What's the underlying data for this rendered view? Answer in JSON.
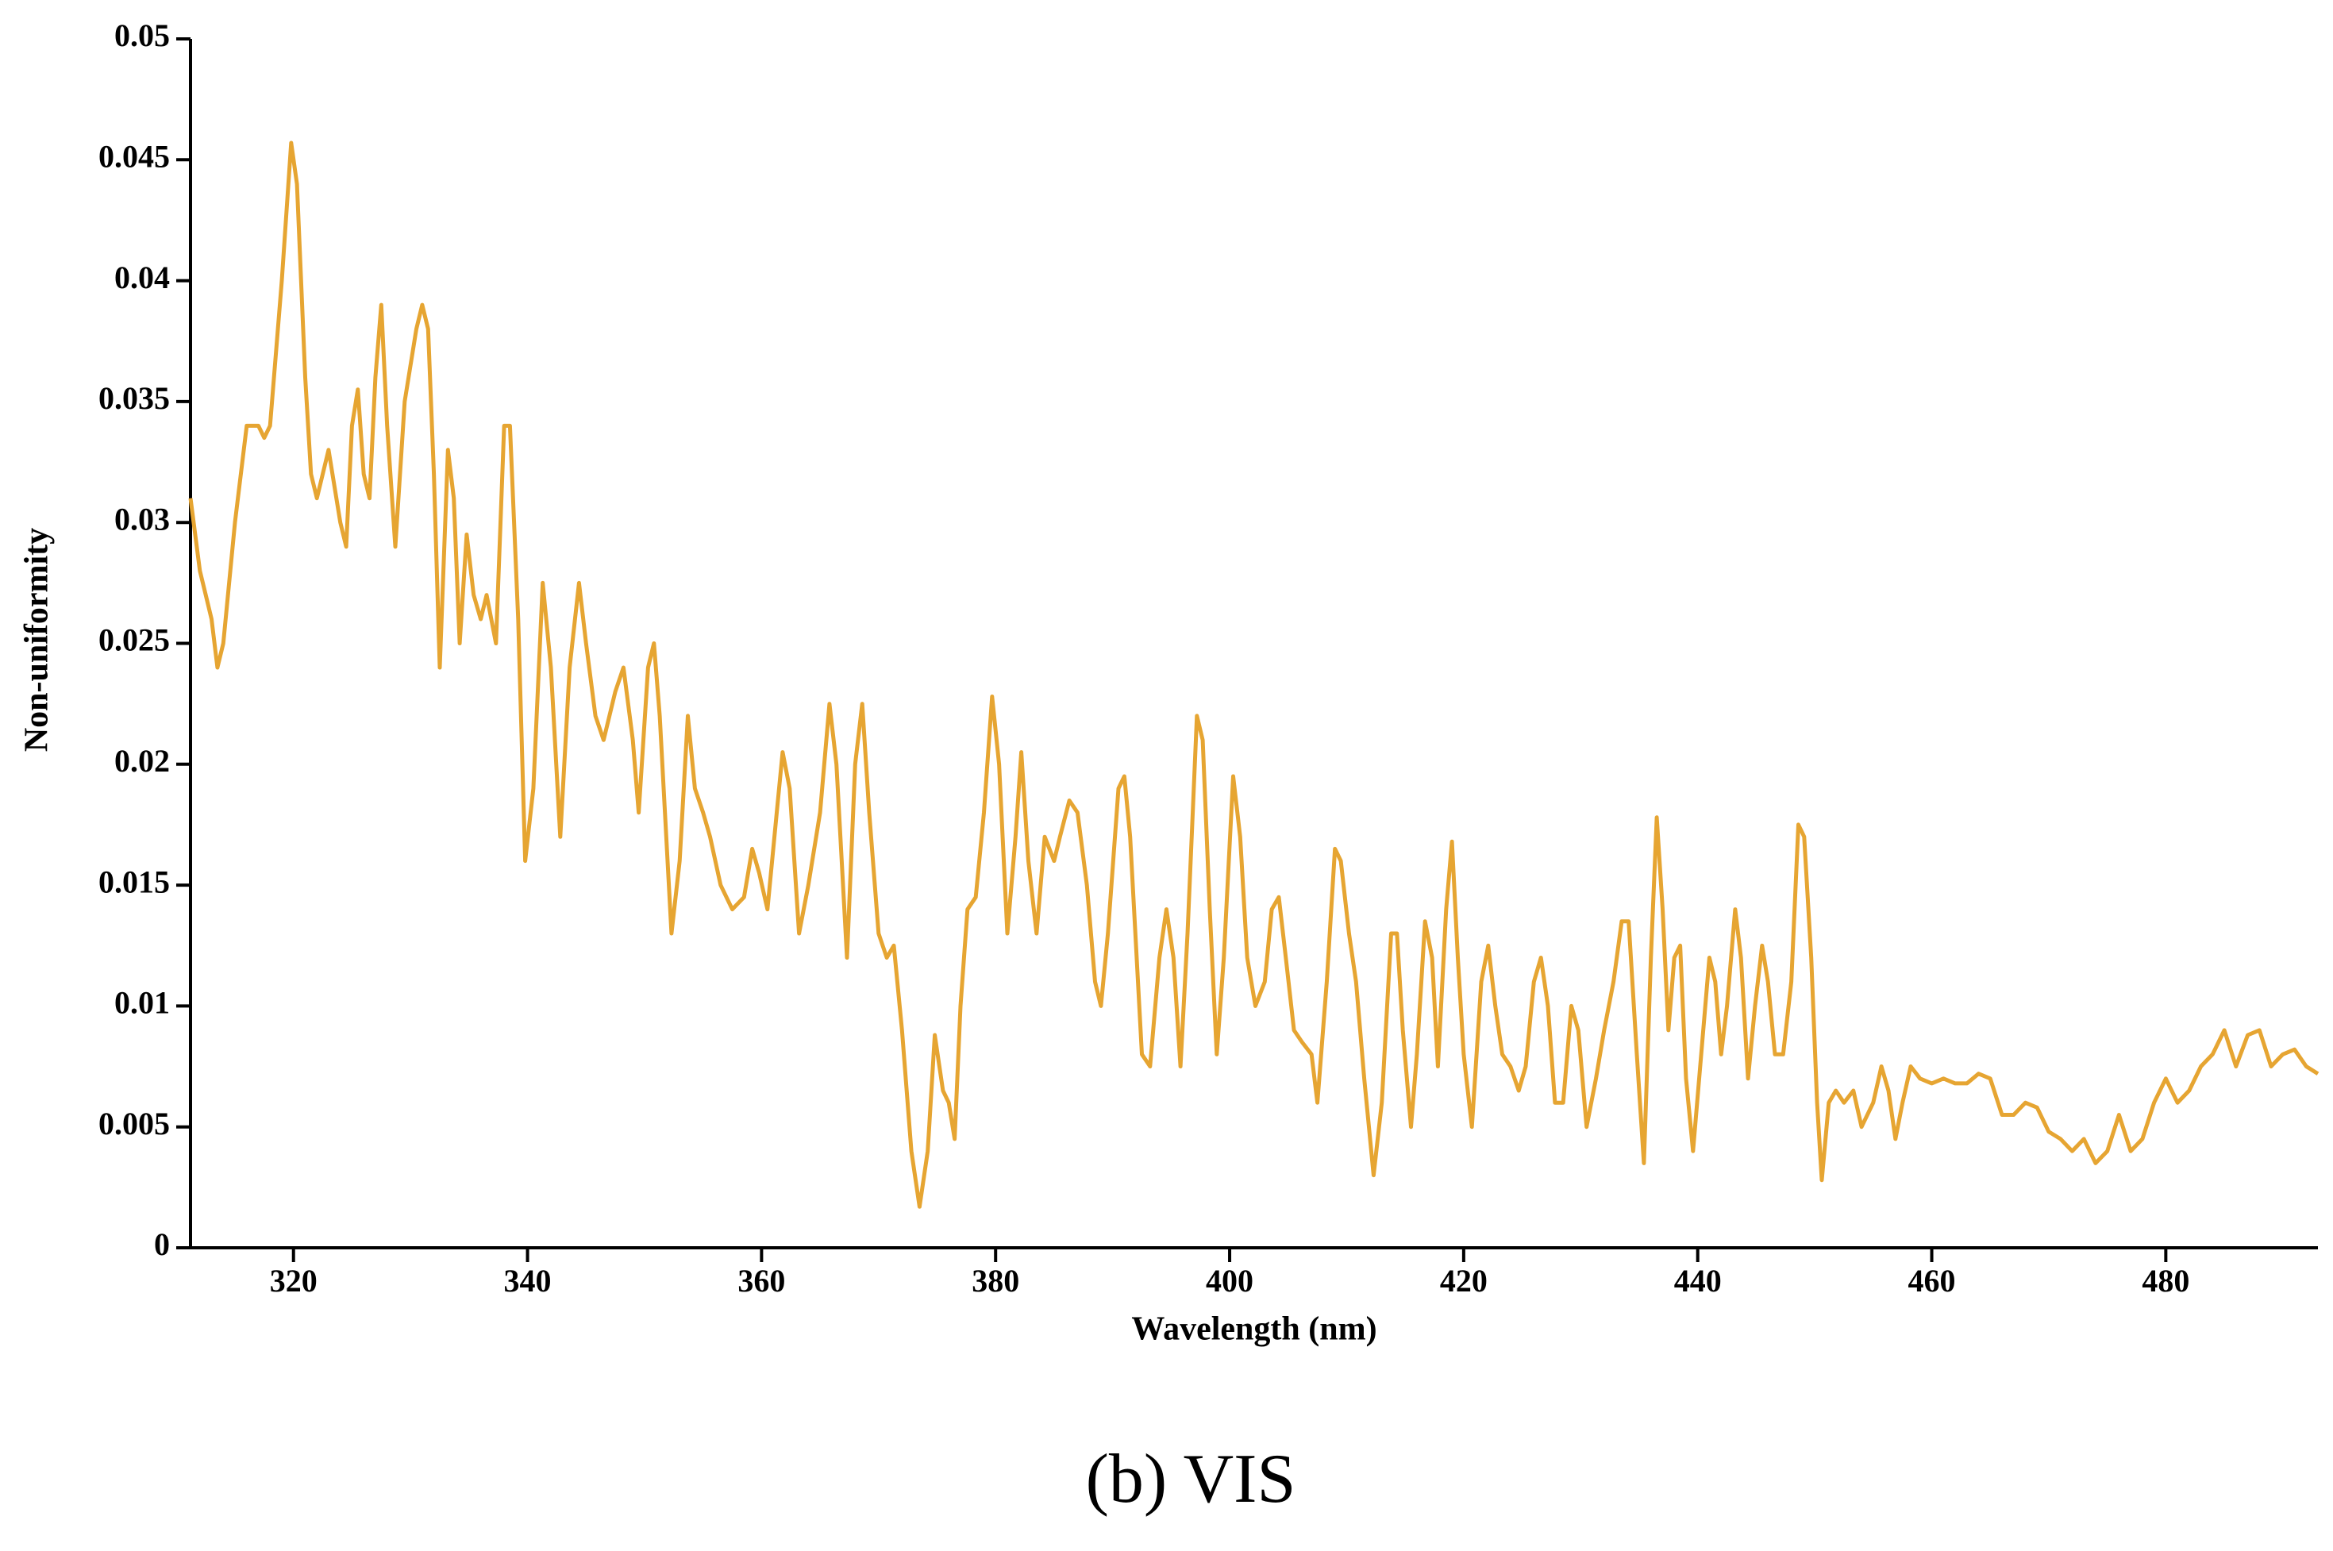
{
  "chart_data": {
    "type": "line",
    "xlabel": "Wavelength (nm)",
    "ylabel": "Non-uniformity",
    "caption": "(b) VIS",
    "xlim": [
      311.2,
      493
    ],
    "xticks": [
      320,
      340,
      360,
      380,
      400,
      420,
      440,
      460,
      480
    ],
    "ylim": [
      0,
      0.05
    ],
    "yticks": [
      0,
      0.005,
      0.01,
      0.015,
      0.02,
      0.025,
      0.03,
      0.035,
      0.04,
      0.045,
      0.05
    ],
    "x": [
      311.2,
      312,
      312.5,
      313,
      313.5,
      314,
      315,
      316,
      317,
      317.5,
      318,
      319,
      319.8,
      320.3,
      321,
      321.5,
      322,
      323,
      324,
      324.5,
      325,
      325.5,
      326,
      326.5,
      327,
      327.5,
      328,
      328.7,
      329.5,
      330.5,
      331,
      331.5,
      332,
      332.5,
      333.2,
      333.7,
      334.2,
      334.8,
      335.4,
      336,
      336.5,
      337.3,
      338,
      338.5,
      339.2,
      339.8,
      340.5,
      341.3,
      342,
      342.8,
      343.6,
      344.4,
      345,
      345.8,
      346.5,
      347.5,
      348.2,
      349,
      349.5,
      350.3,
      350.8,
      351.3,
      352.3,
      353,
      353.7,
      354.3,
      355,
      355.6,
      356.5,
      357.5,
      358.5,
      359.2,
      359.8,
      360.5,
      361.3,
      361.8,
      362.4,
      363.2,
      364,
      365,
      365.8,
      366.4,
      367.3,
      368,
      368.6,
      369.2,
      370,
      370.7,
      371.3,
      372,
      372.8,
      373.5,
      374.2,
      374.8,
      375.5,
      376,
      376.5,
      377,
      377.6,
      378.3,
      379,
      379.7,
      380.3,
      381,
      381.7,
      382.2,
      382.8,
      383.5,
      384.2,
      385,
      385.5,
      386.3,
      387,
      387.8,
      388.5,
      389,
      389.6,
      390.5,
      391,
      391.5,
      392.5,
      393.2,
      394,
      394.6,
      395.2,
      395.8,
      396.4,
      397.2,
      397.7,
      398.3,
      398.9,
      399.5,
      400.3,
      400.9,
      401.5,
      402.2,
      403,
      403.6,
      404.2,
      404.8,
      405.5,
      406.2,
      407,
      407.5,
      408.3,
      409,
      409.5,
      410.2,
      410.8,
      411.5,
      412.3,
      413,
      413.8,
      414.3,
      414.8,
      415.5,
      416,
      416.7,
      417.3,
      417.8,
      418.5,
      419,
      419.5,
      420,
      420.7,
      421.5,
      422.1,
      422.7,
      423.3,
      424,
      424.7,
      425.3,
      426,
      426.6,
      427.2,
      427.8,
      428.5,
      429.2,
      429.8,
      430.5,
      431.3,
      432,
      432.8,
      433.5,
      434.1,
      434.8,
      435.4,
      436,
      436.5,
      437,
      437.5,
      438,
      438.5,
      439,
      439.6,
      440.3,
      441,
      441.5,
      442,
      442.5,
      443.2,
      443.7,
      444.3,
      444.9,
      445.5,
      446,
      446.6,
      447.3,
      448,
      448.6,
      449.1,
      449.7,
      450.2,
      450.6,
      451.2,
      451.8,
      452.5,
      453.3,
      454,
      455,
      455.7,
      456.3,
      456.9,
      457.5,
      458.2,
      459,
      460,
      461,
      462,
      463,
      464,
      465,
      466,
      467,
      468,
      469,
      470,
      471,
      472,
      473,
      474,
      475,
      476,
      477,
      478,
      479,
      480,
      481,
      482,
      483,
      484,
      485,
      486,
      487,
      488,
      489,
      490,
      491,
      492,
      493
    ],
    "series": [
      {
        "color": "#e6a532",
        "values": [
          0.031,
          0.028,
          0.027,
          0.026,
          0.024,
          0.025,
          0.03,
          0.034,
          0.034,
          0.0335,
          0.034,
          0.04,
          0.0457,
          0.044,
          0.036,
          0.032,
          0.031,
          0.033,
          0.03,
          0.029,
          0.034,
          0.0355,
          0.032,
          0.031,
          0.036,
          0.039,
          0.034,
          0.029,
          0.035,
          0.038,
          0.039,
          0.038,
          0.032,
          0.024,
          0.033,
          0.031,
          0.025,
          0.0295,
          0.027,
          0.026,
          0.027,
          0.025,
          0.034,
          0.034,
          0.026,
          0.016,
          0.019,
          0.0275,
          0.024,
          0.017,
          0.024,
          0.0275,
          0.025,
          0.022,
          0.021,
          0.023,
          0.024,
          0.021,
          0.018,
          0.024,
          0.025,
          0.022,
          0.013,
          0.016,
          0.022,
          0.019,
          0.018,
          0.017,
          0.015,
          0.014,
          0.0145,
          0.0165,
          0.0155,
          0.014,
          0.018,
          0.0205,
          0.019,
          0.013,
          0.015,
          0.018,
          0.0225,
          0.02,
          0.012,
          0.02,
          0.0225,
          0.018,
          0.013,
          0.012,
          0.0125,
          0.009,
          0.004,
          0.0017,
          0.004,
          0.0088,
          0.0065,
          0.006,
          0.0045,
          0.01,
          0.014,
          0.0145,
          0.018,
          0.0228,
          0.02,
          0.013,
          0.017,
          0.0205,
          0.016,
          0.013,
          0.017,
          0.016,
          0.017,
          0.0185,
          0.018,
          0.015,
          0.011,
          0.01,
          0.013,
          0.019,
          0.0195,
          0.017,
          0.008,
          0.0075,
          0.012,
          0.014,
          0.012,
          0.0075,
          0.013,
          0.022,
          0.021,
          0.014,
          0.008,
          0.012,
          0.0195,
          0.017,
          0.012,
          0.01,
          0.011,
          0.014,
          0.0145,
          0.012,
          0.009,
          0.0085,
          0.008,
          0.006,
          0.011,
          0.0165,
          0.016,
          0.013,
          0.011,
          0.007,
          0.003,
          0.006,
          0.013,
          0.013,
          0.009,
          0.005,
          0.008,
          0.0135,
          0.012,
          0.0075,
          0.014,
          0.0168,
          0.012,
          0.008,
          0.005,
          0.011,
          0.0125,
          0.01,
          0.008,
          0.0075,
          0.0065,
          0.0075,
          0.011,
          0.012,
          0.01,
          0.006,
          0.006,
          0.01,
          0.009,
          0.005,
          0.007,
          0.009,
          0.011,
          0.0135,
          0.0135,
          0.008,
          0.0035,
          0.012,
          0.0178,
          0.014,
          0.009,
          0.012,
          0.0125,
          0.007,
          0.004,
          0.008,
          0.012,
          0.011,
          0.008,
          0.01,
          0.014,
          0.012,
          0.007,
          0.01,
          0.0125,
          0.011,
          0.008,
          0.008,
          0.011,
          0.0175,
          0.017,
          0.012,
          0.006,
          0.0028,
          0.006,
          0.0065,
          0.006,
          0.0065,
          0.005,
          0.006,
          0.0075,
          0.0065,
          0.0045,
          0.006,
          0.0075,
          0.007,
          0.0068,
          0.007,
          0.0068,
          0.0068,
          0.0072,
          0.007,
          0.0055,
          0.0055,
          0.006,
          0.0058,
          0.0048,
          0.0045,
          0.004,
          0.0045,
          0.0035,
          0.004,
          0.0055,
          0.004,
          0.0045,
          0.006,
          0.007,
          0.006,
          0.0065,
          0.0075,
          0.008,
          0.009,
          0.0075,
          0.0088,
          0.009,
          0.0075,
          0.008,
          0.0082,
          0.0075,
          0.0072
        ]
      }
    ]
  }
}
